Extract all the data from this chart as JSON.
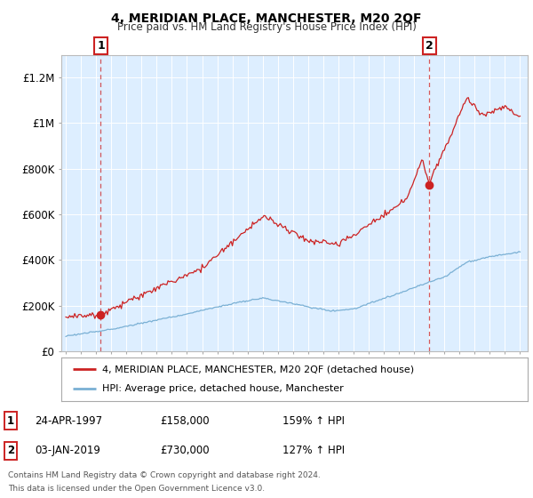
{
  "title": "4, MERIDIAN PLACE, MANCHESTER, M20 2QF",
  "subtitle": "Price paid vs. HM Land Registry's House Price Index (HPI)",
  "legend_line1": "4, MERIDIAN PLACE, MANCHESTER, M20 2QF (detached house)",
  "legend_line2": "HPI: Average price, detached house, Manchester",
  "sale1_date": 1997.31,
  "sale1_price": 158000,
  "sale2_date": 2019.01,
  "sale2_price": 730000,
  "red_color": "#cc2222",
  "blue_color": "#7ab0d4",
  "bg_color": "#ddeeff",
  "grid_color": "#ffffff",
  "ylim": [
    0,
    1300000
  ],
  "xlim_start": 1994.7,
  "xlim_end": 2025.5,
  "footer_line1": "Contains HM Land Registry data © Crown copyright and database right 2024.",
  "footer_line2": "This data is licensed under the Open Government Licence v3.0."
}
